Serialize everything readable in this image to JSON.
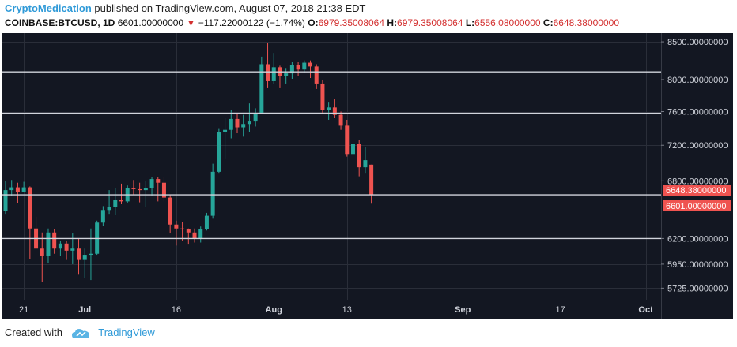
{
  "header": {
    "author": "CryptoMedication",
    "published": "published on TradingView.com, August 07, 2018 21:38 EDT",
    "symbol": "COINBASE:BTCUSD, 1D",
    "last": "6601.00000000",
    "change": "−117.22000122 (−1.74%)",
    "o_label": "O:",
    "o_value": "6979.35008064",
    "h_label": "H:",
    "h_value": "6979.35008064",
    "l_label": "L:",
    "l_value": "6556.08000000",
    "c_label": "C:",
    "c_value": "6648.38000000"
  },
  "footer": {
    "created_with": "Created with",
    "brand": "TradingView"
  },
  "chart_data": {
    "type": "candlestick",
    "symbol": "COINBASE:BTCUSD",
    "interval": "1D",
    "scale": "log",
    "ylim": [
      5620,
      8620
    ],
    "y_ticks": [
      {
        "value": 8500,
        "label": "8500.00000000"
      },
      {
        "value": 8000,
        "label": "8000.00000000"
      },
      {
        "value": 7600,
        "label": "7600.00000000"
      },
      {
        "value": 7200,
        "label": "7200.00000000"
      },
      {
        "value": 6800,
        "label": "6800.00000000"
      },
      {
        "value": 6200,
        "label": "6200.00000000"
      },
      {
        "value": 5950,
        "label": "5950.00000000"
      },
      {
        "value": 5725,
        "label": "5725.00000000"
      }
    ],
    "x_ticks": [
      {
        "date": "2018-06-21",
        "label": "21"
      },
      {
        "date": "2018-07-01",
        "label": "Jul"
      },
      {
        "date": "2018-07-16",
        "label": "16"
      },
      {
        "date": "2018-08-01",
        "label": "Aug"
      },
      {
        "date": "2018-08-13",
        "label": "13"
      },
      {
        "date": "2018-09-01",
        "label": "Sep"
      },
      {
        "date": "2018-09-17",
        "label": "17"
      },
      {
        "date": "2018-10-01",
        "label": "Oct"
      }
    ],
    "x_range": [
      "2018-06-18",
      "2018-10-03"
    ],
    "horizontal_lines": [
      8100,
      7580,
      6650,
      6200
    ],
    "price_labels": [
      {
        "value": 6648.38,
        "label": "6648.38000000"
      },
      {
        "value": 6601.0,
        "label": "6601.00000000"
      }
    ],
    "colors": {
      "up": "#26a69a",
      "down": "#ef5350",
      "background": "#131722",
      "grid": "#2a2e39",
      "line": "#d1d4dc",
      "label_bg": "#ef5350"
    },
    "candles": [
      {
        "date": "2018-06-18",
        "o": 6480,
        "h": 6800,
        "l": 6450,
        "c": 6700
      },
      {
        "date": "2018-06-19",
        "o": 6700,
        "h": 6810,
        "l": 6640,
        "c": 6730
      },
      {
        "date": "2018-06-20",
        "o": 6730,
        "h": 6780,
        "l": 6560,
        "c": 6680
      },
      {
        "date": "2018-06-21",
        "o": 6680,
        "h": 6790,
        "l": 6680,
        "c": 6730
      },
      {
        "date": "2018-06-22",
        "o": 6730,
        "h": 6740,
        "l": 6000,
        "c": 6300
      },
      {
        "date": "2018-06-23",
        "o": 6300,
        "h": 6420,
        "l": 6120,
        "c": 6100
      },
      {
        "date": "2018-06-24",
        "o": 6100,
        "h": 6260,
        "l": 5780,
        "c": 6030
      },
      {
        "date": "2018-06-25",
        "o": 6030,
        "h": 6300,
        "l": 5960,
        "c": 6260
      },
      {
        "date": "2018-06-26",
        "o": 6260,
        "h": 6290,
        "l": 6050,
        "c": 6100
      },
      {
        "date": "2018-06-27",
        "o": 6100,
        "h": 6180,
        "l": 6030,
        "c": 6150
      },
      {
        "date": "2018-06-28",
        "o": 6150,
        "h": 6180,
        "l": 5990,
        "c": 6080
      },
      {
        "date": "2018-06-29",
        "o": 6080,
        "h": 6250,
        "l": 5950,
        "c": 6100
      },
      {
        "date": "2018-06-30",
        "o": 6100,
        "h": 6200,
        "l": 5850,
        "c": 5990
      },
      {
        "date": "2018-07-01",
        "o": 5990,
        "h": 6100,
        "l": 5820,
        "c": 6040
      },
      {
        "date": "2018-07-02",
        "o": 6040,
        "h": 6300,
        "l": 5800,
        "c": 6050
      },
      {
        "date": "2018-07-03",
        "o": 6050,
        "h": 6380,
        "l": 6040,
        "c": 6360
      },
      {
        "date": "2018-07-04",
        "o": 6360,
        "h": 6530,
        "l": 6330,
        "c": 6490
      },
      {
        "date": "2018-07-05",
        "o": 6490,
        "h": 6700,
        "l": 6450,
        "c": 6520
      },
      {
        "date": "2018-07-06",
        "o": 6520,
        "h": 6720,
        "l": 6440,
        "c": 6600
      },
      {
        "date": "2018-07-07",
        "o": 6600,
        "h": 6770,
        "l": 6550,
        "c": 6580
      },
      {
        "date": "2018-07-08",
        "o": 6580,
        "h": 6750,
        "l": 6560,
        "c": 6720
      },
      {
        "date": "2018-07-09",
        "o": 6720,
        "h": 6810,
        "l": 6650,
        "c": 6710
      },
      {
        "date": "2018-07-10",
        "o": 6710,
        "h": 6780,
        "l": 6570,
        "c": 6700
      },
      {
        "date": "2018-07-11",
        "o": 6700,
        "h": 6800,
        "l": 6520,
        "c": 6720
      },
      {
        "date": "2018-07-12",
        "o": 6720,
        "h": 6840,
        "l": 6640,
        "c": 6820
      },
      {
        "date": "2018-07-13",
        "o": 6820,
        "h": 6840,
        "l": 6580,
        "c": 6780
      },
      {
        "date": "2018-07-14",
        "o": 6780,
        "h": 6840,
        "l": 6580,
        "c": 6620
      },
      {
        "date": "2018-07-15",
        "o": 6620,
        "h": 6650,
        "l": 6250,
        "c": 6340
      },
      {
        "date": "2018-07-16",
        "o": 6340,
        "h": 6380,
        "l": 6130,
        "c": 6300
      },
      {
        "date": "2018-07-17",
        "o": 6300,
        "h": 6370,
        "l": 6180,
        "c": 6290
      },
      {
        "date": "2018-07-18",
        "o": 6290,
        "h": 6300,
        "l": 6140,
        "c": 6260
      },
      {
        "date": "2018-07-19",
        "o": 6260,
        "h": 6300,
        "l": 6160,
        "c": 6200
      },
      {
        "date": "2018-07-20",
        "o": 6200,
        "h": 6320,
        "l": 6160,
        "c": 6290
      },
      {
        "date": "2018-07-21",
        "o": 6290,
        "h": 6460,
        "l": 6280,
        "c": 6430
      },
      {
        "date": "2018-07-22",
        "o": 6430,
        "h": 6990,
        "l": 6400,
        "c": 6900
      },
      {
        "date": "2018-07-23",
        "o": 6900,
        "h": 7400,
        "l": 6880,
        "c": 7350
      },
      {
        "date": "2018-07-24",
        "o": 7350,
        "h": 7520,
        "l": 7050,
        "c": 7380
      },
      {
        "date": "2018-07-25",
        "o": 7380,
        "h": 7620,
        "l": 7280,
        "c": 7510
      },
      {
        "date": "2018-07-26",
        "o": 7510,
        "h": 7570,
        "l": 7340,
        "c": 7410
      },
      {
        "date": "2018-07-27",
        "o": 7410,
        "h": 7560,
        "l": 7300,
        "c": 7450
      },
      {
        "date": "2018-07-28",
        "o": 7450,
        "h": 7700,
        "l": 7350,
        "c": 7480
      },
      {
        "date": "2018-07-29",
        "o": 7480,
        "h": 7640,
        "l": 7420,
        "c": 7580
      },
      {
        "date": "2018-07-30",
        "o": 7580,
        "h": 8300,
        "l": 7580,
        "c": 8200
      },
      {
        "date": "2018-07-31",
        "o": 8200,
        "h": 8480,
        "l": 7900,
        "c": 7980
      },
      {
        "date": "2018-08-01",
        "o": 7980,
        "h": 8350,
        "l": 7940,
        "c": 8160
      },
      {
        "date": "2018-08-02",
        "o": 8160,
        "h": 8180,
        "l": 7900,
        "c": 8050
      },
      {
        "date": "2018-08-03",
        "o": 8050,
        "h": 8150,
        "l": 7950,
        "c": 8080
      },
      {
        "date": "2018-08-04",
        "o": 8080,
        "h": 8230,
        "l": 8010,
        "c": 8190
      },
      {
        "date": "2018-08-05",
        "o": 8190,
        "h": 8230,
        "l": 8050,
        "c": 8130
      },
      {
        "date": "2018-08-06",
        "o": 8130,
        "h": 8250,
        "l": 8090,
        "c": 8220
      },
      {
        "date": "2018-08-07",
        "o": 8220,
        "h": 8250,
        "l": 8020,
        "c": 8170
      },
      {
        "date": "2018-08-08",
        "o": 8170,
        "h": 8200,
        "l": 7880,
        "c": 7950
      },
      {
        "date": "2018-08-09",
        "o": 7950,
        "h": 8000,
        "l": 7580,
        "c": 7620
      },
      {
        "date": "2018-08-10",
        "o": 7620,
        "h": 7720,
        "l": 7500,
        "c": 7650
      },
      {
        "date": "2018-08-11",
        "o": 7650,
        "h": 7750,
        "l": 7520,
        "c": 7560
      },
      {
        "date": "2018-08-12",
        "o": 7560,
        "h": 7600,
        "l": 7380,
        "c": 7430
      },
      {
        "date": "2018-08-13",
        "o": 7430,
        "h": 7500,
        "l": 7070,
        "c": 7100
      },
      {
        "date": "2018-08-14",
        "o": 7100,
        "h": 7350,
        "l": 6980,
        "c": 7220
      },
      {
        "date": "2018-08-15",
        "o": 7220,
        "h": 7260,
        "l": 6850,
        "c": 6950
      },
      {
        "date": "2018-08-16",
        "o": 6950,
        "h": 7180,
        "l": 6880,
        "c": 7030
      },
      {
        "date": "2018-08-17",
        "o": 6979.35,
        "h": 6979.35,
        "l": 6556.08,
        "c": 6648.38
      }
    ]
  }
}
